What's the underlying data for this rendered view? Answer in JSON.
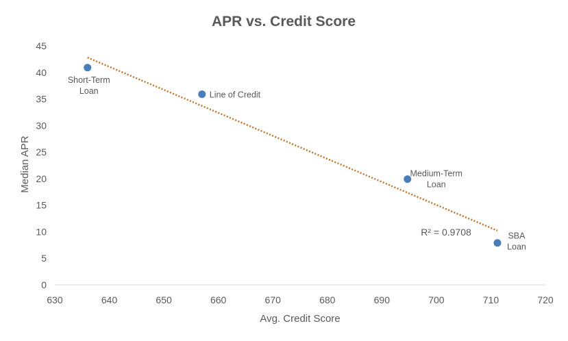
{
  "chart_data": {
    "type": "scatter",
    "title": "APR vs. Credit Score",
    "xlabel": "Avg. Credit Score",
    "ylabel": "Median APR",
    "xlim": [
      630,
      720
    ],
    "ylim": [
      0,
      45
    ],
    "x_ticks": [
      630,
      640,
      650,
      660,
      670,
      680,
      690,
      700,
      710,
      720
    ],
    "y_ticks": [
      0,
      5,
      10,
      15,
      20,
      25,
      30,
      35,
      40,
      45
    ],
    "grid": false,
    "legend": "none",
    "marker_color": "#4a7ebb",
    "trendline_color": "#c0732f",
    "points": [
      {
        "x": 636,
        "y": 40.9,
        "label": [
          "Short-Term",
          "Loan"
        ]
      },
      {
        "x": 657,
        "y": 35.9,
        "label": [
          "Line of Credit"
        ]
      },
      {
        "x": 694.7,
        "y": 19.9,
        "label": [
          "Medium-Term",
          "Loan"
        ]
      },
      {
        "x": 711.2,
        "y": 7.9,
        "label": [
          "SBA",
          "Loan"
        ]
      }
    ],
    "trendline": {
      "type": "linear",
      "from": {
        "x": 636,
        "y": 42.8
      },
      "to": {
        "x": 711.2,
        "y": 10.2
      },
      "r_squared_label": "R² = 0.9708"
    }
  }
}
